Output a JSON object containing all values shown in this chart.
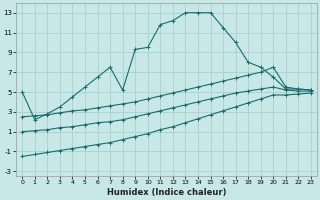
{
  "xlabel": "Humidex (Indice chaleur)",
  "bg_color": "#c8e8e8",
  "grid_color": "#a8d0d0",
  "line_color": "#1a6b6b",
  "xlim": [
    -0.5,
    23.5
  ],
  "ylim": [
    -3.5,
    14.0
  ],
  "xticks": [
    0,
    1,
    2,
    3,
    4,
    5,
    6,
    7,
    8,
    9,
    10,
    11,
    12,
    13,
    14,
    15,
    16,
    17,
    18,
    19,
    20,
    21,
    22,
    23
  ],
  "yticks": [
    -3,
    -1,
    1,
    3,
    5,
    7,
    9,
    11,
    13
  ],
  "curve1_x": [
    0,
    1,
    2,
    3,
    4,
    5,
    6,
    7,
    8,
    9,
    10,
    11,
    12,
    13,
    14,
    15,
    16,
    17,
    18,
    19,
    20,
    21,
    22,
    23
  ],
  "curve1_y": [
    5.0,
    2.2,
    2.8,
    3.5,
    4.5,
    5.5,
    6.5,
    7.5,
    5.2,
    9.3,
    9.5,
    11.8,
    12.2,
    13.0,
    13.0,
    13.0,
    11.5,
    10.0,
    8.0,
    7.5,
    6.5,
    5.3,
    5.3,
    5.2
  ],
  "curve2_x": [
    0,
    1,
    2,
    3,
    4,
    5,
    6,
    7,
    8,
    9,
    10,
    11,
    12,
    13,
    14,
    15,
    16,
    17,
    18,
    19,
    20,
    21,
    22,
    23
  ],
  "curve2_y": [
    2.5,
    2.6,
    2.7,
    2.9,
    3.1,
    3.2,
    3.4,
    3.6,
    3.8,
    4.0,
    4.3,
    4.6,
    4.9,
    5.2,
    5.5,
    5.8,
    6.1,
    6.4,
    6.7,
    7.0,
    7.5,
    5.5,
    5.3,
    5.2
  ],
  "curve3_x": [
    0,
    1,
    2,
    3,
    4,
    5,
    6,
    7,
    8,
    9,
    10,
    11,
    12,
    13,
    14,
    15,
    16,
    17,
    18,
    19,
    20,
    21,
    22,
    23
  ],
  "curve3_y": [
    1.0,
    1.1,
    1.2,
    1.4,
    1.5,
    1.7,
    1.9,
    2.0,
    2.2,
    2.5,
    2.8,
    3.1,
    3.4,
    3.7,
    4.0,
    4.3,
    4.6,
    4.9,
    5.1,
    5.3,
    5.5,
    5.2,
    5.1,
    5.1
  ],
  "curve4_x": [
    0,
    1,
    2,
    3,
    4,
    5,
    6,
    7,
    8,
    9,
    10,
    11,
    12,
    13,
    14,
    15,
    16,
    17,
    18,
    19,
    20,
    21,
    22,
    23
  ],
  "curve4_y": [
    -1.5,
    -1.3,
    -1.1,
    -0.9,
    -0.7,
    -0.5,
    -0.3,
    -0.1,
    0.2,
    0.5,
    0.8,
    1.2,
    1.5,
    1.9,
    2.3,
    2.7,
    3.1,
    3.5,
    3.9,
    4.3,
    4.7,
    4.7,
    4.8,
    4.9
  ]
}
